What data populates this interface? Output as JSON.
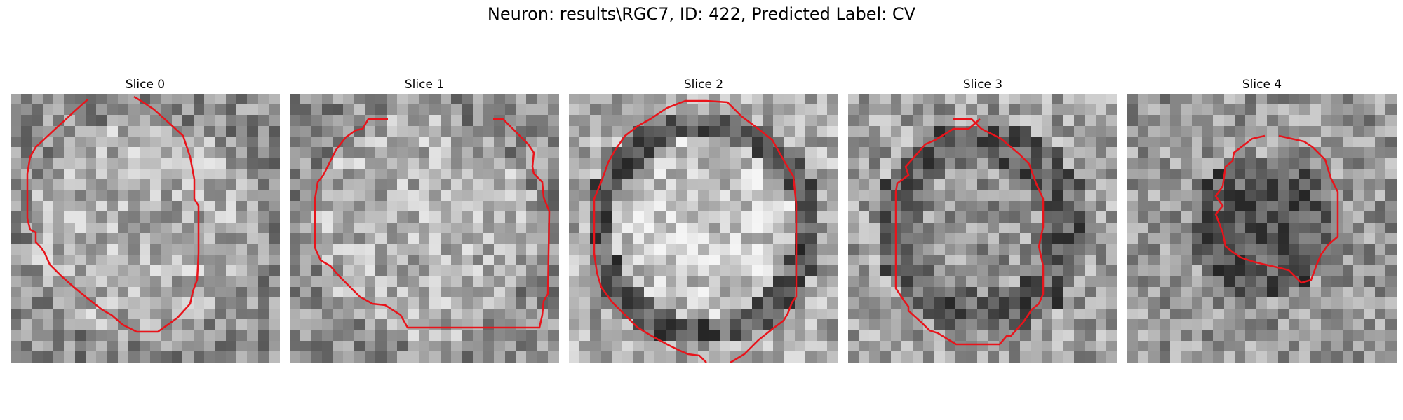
{
  "figure": {
    "title": "Neuron: results\\RGC7, ID: 422, Predicted Label: CV"
  },
  "slices": [
    {
      "label": "Slice 0",
      "cell": "bright",
      "contour_color": "#e8141b"
    },
    {
      "label": "Slice 1",
      "cell": "bright",
      "contour_color": "#e8141b"
    },
    {
      "label": "Slice 2",
      "cell": "bright-ringed",
      "contour_color": "#e8141b"
    },
    {
      "label": "Slice 3",
      "cell": "dark-ringed",
      "contour_color": "#e8141b"
    },
    {
      "label": "Slice 4",
      "cell": "dark",
      "contour_color": "#e8141b"
    }
  ]
}
